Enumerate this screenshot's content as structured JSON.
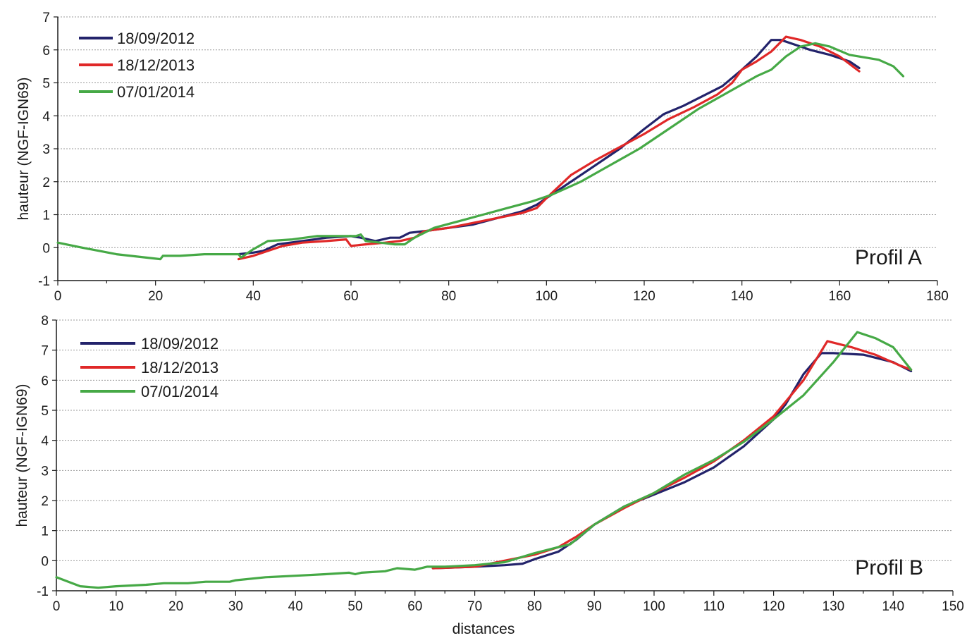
{
  "chart_data": [
    {
      "type": "line",
      "panel_label": "Profil A",
      "ylabel": "hauteur (NGF-IGN69)",
      "xlabel": "",
      "xlim": [
        0,
        180
      ],
      "ylim": [
        -1,
        7
      ],
      "xticks": [
        0,
        20,
        40,
        60,
        80,
        100,
        120,
        140,
        160,
        180
      ],
      "yticks": [
        -1,
        0,
        1,
        2,
        3,
        4,
        5,
        6,
        7
      ],
      "grid": "horizontal dotted",
      "legend_position": "top-left",
      "series": [
        {
          "name": "18/09/2012",
          "color": "#23236b",
          "x": [
            37,
            40,
            42,
            45,
            50,
            55,
            60,
            62,
            65,
            68,
            70,
            72,
            75,
            80,
            85,
            90,
            95,
            98,
            100,
            105,
            110,
            115,
            120,
            124,
            128,
            132,
            136,
            140,
            143,
            146,
            148,
            150,
            154,
            158,
            162,
            164
          ],
          "y": [
            -0.2,
            -0.15,
            -0.1,
            0.1,
            0.2,
            0.3,
            0.35,
            0.3,
            0.2,
            0.3,
            0.3,
            0.45,
            0.5,
            0.6,
            0.7,
            0.9,
            1.1,
            1.3,
            1.5,
            2.0,
            2.5,
            3.0,
            3.6,
            4.05,
            4.3,
            4.6,
            4.9,
            5.4,
            5.8,
            6.3,
            6.3,
            6.2,
            6.0,
            5.85,
            5.65,
            5.45
          ]
        },
        {
          "name": "18/12/2013",
          "color": "#e02828",
          "x": [
            37,
            40,
            43,
            46,
            50,
            55,
            59,
            60,
            63,
            67,
            70,
            73,
            75,
            80,
            85,
            90,
            95,
            98,
            100,
            105,
            110,
            115,
            120,
            125,
            130,
            135,
            138,
            140,
            143,
            146,
            149,
            152,
            156,
            160,
            164
          ],
          "y": [
            -0.35,
            -0.25,
            -0.1,
            0.05,
            0.15,
            0.2,
            0.25,
            0.05,
            0.1,
            0.15,
            0.2,
            0.3,
            0.5,
            0.6,
            0.75,
            0.9,
            1.05,
            1.2,
            1.5,
            2.2,
            2.65,
            3.05,
            3.45,
            3.9,
            4.25,
            4.65,
            5.0,
            5.4,
            5.65,
            5.95,
            6.4,
            6.3,
            6.1,
            5.8,
            5.35
          ]
        },
        {
          "name": "07/01/2014",
          "color": "#46a946",
          "x": [
            0,
            5,
            12,
            21,
            21.5,
            25,
            30,
            37,
            37.5,
            40,
            43,
            48,
            53,
            58,
            61,
            62,
            63,
            66,
            69,
            71,
            73,
            77,
            82,
            87,
            92,
            97,
            101,
            107,
            113,
            119,
            125,
            131,
            137,
            143,
            146,
            149,
            152,
            155,
            158,
            162,
            168,
            171,
            173
          ],
          "y": [
            0.15,
            0.0,
            -0.2,
            -0.35,
            -0.25,
            -0.25,
            -0.2,
            -0.2,
            -0.3,
            -0.05,
            0.2,
            0.25,
            0.35,
            0.35,
            0.35,
            0.4,
            0.2,
            0.15,
            0.1,
            0.1,
            0.3,
            0.6,
            0.8,
            1.0,
            1.2,
            1.4,
            1.6,
            2.0,
            2.5,
            3.0,
            3.6,
            4.2,
            4.7,
            5.2,
            5.4,
            5.8,
            6.1,
            6.2,
            6.1,
            5.85,
            5.7,
            5.5,
            5.2
          ]
        }
      ]
    },
    {
      "type": "line",
      "panel_label": "Profil B",
      "ylabel": "hauteur (NGF-IGN69)",
      "xlabel": "distances",
      "xlim": [
        0,
        150
      ],
      "ylim": [
        -1,
        8
      ],
      "xticks": [
        0,
        10,
        20,
        30,
        40,
        50,
        60,
        70,
        80,
        90,
        100,
        110,
        120,
        130,
        140,
        150
      ],
      "yticks": [
        -1,
        0,
        1,
        2,
        3,
        4,
        5,
        6,
        7,
        8
      ],
      "grid": "horizontal dotted",
      "legend_position": "top-left",
      "series": [
        {
          "name": "18/09/2012",
          "color": "#23236b",
          "x": [
            63,
            70,
            75,
            78,
            80,
            84,
            87,
            90,
            95,
            100,
            105,
            110,
            115,
            120,
            122,
            125,
            128,
            130,
            135,
            140,
            143
          ],
          "y": [
            -0.25,
            -0.2,
            -0.15,
            -0.1,
            0.05,
            0.3,
            0.7,
            1.2,
            1.8,
            2.2,
            2.6,
            3.1,
            3.8,
            4.7,
            5.2,
            6.2,
            6.9,
            6.9,
            6.85,
            6.6,
            6.3
          ]
        },
        {
          "name": "18/12/2013",
          "color": "#e02828",
          "x": [
            63,
            70,
            75,
            80,
            84,
            87,
            90,
            95,
            100,
            105,
            110,
            115,
            120,
            125,
            129,
            133,
            137,
            141,
            143
          ],
          "y": [
            -0.25,
            -0.2,
            0.0,
            0.2,
            0.45,
            0.8,
            1.2,
            1.75,
            2.25,
            2.75,
            3.3,
            4.0,
            4.8,
            6.0,
            7.3,
            7.1,
            6.85,
            6.5,
            6.35
          ]
        },
        {
          "name": "07/01/2014",
          "color": "#46a946",
          "x": [
            0,
            2,
            4,
            7,
            10,
            15,
            18,
            22,
            25,
            29,
            30,
            35,
            40,
            45,
            49,
            50,
            51,
            55,
            57,
            60,
            62,
            65,
            70,
            75,
            80,
            84,
            86,
            90,
            95,
            100,
            105,
            110,
            115,
            120,
            125,
            130,
            134,
            137,
            140,
            143
          ],
          "y": [
            -0.55,
            -0.7,
            -0.85,
            -0.9,
            -0.85,
            -0.8,
            -0.75,
            -0.75,
            -0.7,
            -0.7,
            -0.65,
            -0.55,
            -0.5,
            -0.45,
            -0.4,
            -0.45,
            -0.4,
            -0.35,
            -0.25,
            -0.3,
            -0.2,
            -0.2,
            -0.15,
            -0.05,
            0.25,
            0.45,
            0.55,
            1.2,
            1.8,
            2.25,
            2.85,
            3.35,
            3.95,
            4.7,
            5.5,
            6.6,
            7.6,
            7.4,
            7.1,
            6.35
          ]
        }
      ]
    }
  ]
}
